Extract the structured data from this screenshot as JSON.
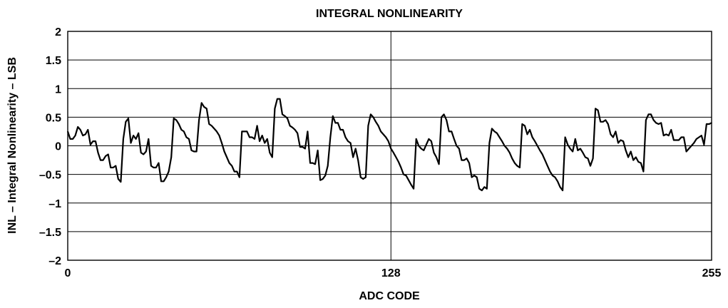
{
  "chart_data": {
    "type": "line",
    "title": "INTEGRAL NONLINEARITY",
    "xlabel": "ADC CODE",
    "ylabel": "INL – Integral Nonlinearity – LSB",
    "xlim": [
      0,
      255
    ],
    "ylim": [
      -2,
      2
    ],
    "x_ticks": [
      0,
      128,
      255
    ],
    "x_tick_labels": [
      "0",
      "128",
      "255"
    ],
    "y_ticks": [
      2,
      1.5,
      1,
      0.5,
      0,
      -0.5,
      -1,
      -1.5,
      -2
    ],
    "y_tick_labels": [
      "2",
      "1.5",
      "1",
      "0.5",
      "0",
      "–0.5",
      "–1",
      "–1.5",
      "–2"
    ],
    "grid": {
      "horizontal": true,
      "vertical": "x=128 only"
    },
    "line_color": "#000000",
    "series": [
      {
        "points": [
          [
            0,
            0.25
          ],
          [
            1,
            0.12
          ],
          [
            2,
            0.12
          ],
          [
            3,
            0.18
          ],
          [
            4,
            0.33
          ],
          [
            5,
            0.28
          ],
          [
            6,
            0.18
          ],
          [
            7,
            0.2
          ],
          [
            8,
            0.28
          ],
          [
            9,
            0.02
          ],
          [
            10,
            0.08
          ],
          [
            11,
            0.08
          ],
          [
            12,
            -0.12
          ],
          [
            13,
            -0.25
          ],
          [
            14,
            -0.25
          ],
          [
            15,
            -0.18
          ],
          [
            16,
            -0.15
          ],
          [
            17,
            -0.38
          ],
          [
            18,
            -0.38
          ],
          [
            19,
            -0.35
          ],
          [
            20,
            -0.58
          ],
          [
            21,
            -0.63
          ],
          [
            22,
            0.12
          ],
          [
            23,
            0.42
          ],
          [
            24,
            0.48
          ],
          [
            25,
            0.05
          ],
          [
            26,
            0.18
          ],
          [
            27,
            0.12
          ],
          [
            28,
            0.22
          ],
          [
            29,
            -0.12
          ],
          [
            30,
            -0.15
          ],
          [
            31,
            -0.1
          ],
          [
            32,
            0.12
          ],
          [
            33,
            -0.35
          ],
          [
            34,
            -0.38
          ],
          [
            35,
            -0.38
          ],
          [
            36,
            -0.3
          ],
          [
            37,
            -0.62
          ],
          [
            38,
            -0.62
          ],
          [
            39,
            -0.55
          ],
          [
            40,
            -0.45
          ],
          [
            41,
            -0.2
          ],
          [
            42,
            0.48
          ],
          [
            43,
            0.45
          ],
          [
            44,
            0.38
          ],
          [
            45,
            0.28
          ],
          [
            46,
            0.25
          ],
          [
            47,
            0.15
          ],
          [
            48,
            0.12
          ],
          [
            49,
            -0.08
          ],
          [
            50,
            -0.1
          ],
          [
            51,
            -0.1
          ],
          [
            52,
            0.45
          ],
          [
            53,
            0.75
          ],
          [
            54,
            0.68
          ],
          [
            55,
            0.65
          ],
          [
            56,
            0.38
          ],
          [
            57,
            0.35
          ],
          [
            58,
            0.3
          ],
          [
            59,
            0.25
          ],
          [
            60,
            0.18
          ],
          [
            61,
            0.05
          ],
          [
            62,
            -0.1
          ],
          [
            63,
            -0.2
          ],
          [
            64,
            -0.3
          ],
          [
            65,
            -0.35
          ],
          [
            66,
            -0.45
          ],
          [
            67,
            -0.45
          ],
          [
            68,
            -0.55
          ],
          [
            69,
            0.25
          ],
          [
            70,
            0.25
          ],
          [
            71,
            0.25
          ],
          [
            72,
            0.15
          ],
          [
            73,
            0.15
          ],
          [
            74,
            0.12
          ],
          [
            75,
            0.35
          ],
          [
            76,
            0.08
          ],
          [
            77,
            0.18
          ],
          [
            78,
            0.05
          ],
          [
            79,
            0.12
          ],
          [
            80,
            -0.12
          ],
          [
            81,
            -0.2
          ],
          [
            82,
            0.65
          ],
          [
            83,
            0.82
          ],
          [
            84,
            0.82
          ],
          [
            85,
            0.55
          ],
          [
            86,
            0.52
          ],
          [
            87,
            0.48
          ],
          [
            88,
            0.35
          ],
          [
            89,
            0.32
          ],
          [
            90,
            0.28
          ],
          [
            91,
            0.22
          ],
          [
            92,
            -0.02
          ],
          [
            93,
            -0.02
          ],
          [
            94,
            -0.05
          ],
          [
            95,
            0.25
          ],
          [
            96,
            -0.3
          ],
          [
            97,
            -0.3
          ],
          [
            98,
            -0.32
          ],
          [
            99,
            -0.08
          ],
          [
            100,
            -0.6
          ],
          [
            101,
            -0.58
          ],
          [
            102,
            -0.52
          ],
          [
            103,
            -0.35
          ],
          [
            104,
            0.15
          ],
          [
            105,
            0.52
          ],
          [
            106,
            0.4
          ],
          [
            107,
            0.4
          ],
          [
            108,
            0.28
          ],
          [
            109,
            0.28
          ],
          [
            110,
            0.15
          ],
          [
            111,
            0.08
          ],
          [
            112,
            0.05
          ],
          [
            113,
            -0.2
          ],
          [
            114,
            -0.05
          ],
          [
            115,
            -0.25
          ],
          [
            116,
            -0.55
          ],
          [
            117,
            -0.58
          ],
          [
            118,
            -0.55
          ],
          [
            119,
            0.35
          ],
          [
            120,
            0.55
          ],
          [
            121,
            0.5
          ],
          [
            122,
            0.42
          ],
          [
            123,
            0.35
          ],
          [
            124,
            0.25
          ],
          [
            125,
            0.2
          ],
          [
            126,
            0.15
          ],
          [
            127,
            0.08
          ],
          [
            128,
            -0.05
          ],
          [
            129,
            -0.12
          ],
          [
            130,
            -0.2
          ],
          [
            131,
            -0.28
          ],
          [
            132,
            -0.38
          ],
          [
            133,
            -0.5
          ],
          [
            134,
            -0.52
          ],
          [
            135,
            -0.6
          ],
          [
            136,
            -0.68
          ],
          [
            137,
            -0.75
          ],
          [
            138,
            0.12
          ],
          [
            139,
            0.0
          ],
          [
            140,
            -0.05
          ],
          [
            141,
            -0.08
          ],
          [
            142,
            0.02
          ],
          [
            143,
            0.12
          ],
          [
            144,
            0.08
          ],
          [
            145,
            -0.12
          ],
          [
            146,
            -0.2
          ],
          [
            147,
            -0.32
          ],
          [
            148,
            0.5
          ],
          [
            149,
            0.55
          ],
          [
            150,
            0.45
          ],
          [
            151,
            0.25
          ],
          [
            152,
            0.25
          ],
          [
            153,
            0.12
          ],
          [
            154,
            0.0
          ],
          [
            155,
            -0.05
          ],
          [
            156,
            -0.25
          ],
          [
            157,
            -0.25
          ],
          [
            158,
            -0.22
          ],
          [
            159,
            -0.3
          ],
          [
            160,
            -0.55
          ],
          [
            161,
            -0.52
          ],
          [
            162,
            -0.55
          ],
          [
            163,
            -0.75
          ],
          [
            164,
            -0.78
          ],
          [
            165,
            -0.72
          ],
          [
            166,
            -0.75
          ],
          [
            167,
            0.05
          ],
          [
            168,
            0.3
          ],
          [
            169,
            0.25
          ],
          [
            170,
            0.22
          ],
          [
            171,
            0.15
          ],
          [
            172,
            0.08
          ],
          [
            173,
            0.0
          ],
          [
            174,
            -0.05
          ],
          [
            175,
            -0.12
          ],
          [
            176,
            -0.22
          ],
          [
            177,
            -0.3
          ],
          [
            178,
            -0.35
          ],
          [
            179,
            -0.38
          ],
          [
            180,
            0.38
          ],
          [
            181,
            0.35
          ],
          [
            182,
            0.2
          ],
          [
            183,
            0.28
          ],
          [
            184,
            0.15
          ],
          [
            185,
            0.08
          ],
          [
            186,
            0.0
          ],
          [
            187,
            -0.08
          ],
          [
            188,
            -0.15
          ],
          [
            189,
            -0.25
          ],
          [
            190,
            -0.35
          ],
          [
            191,
            -0.45
          ],
          [
            192,
            -0.52
          ],
          [
            193,
            -0.55
          ],
          [
            194,
            -0.62
          ],
          [
            195,
            -0.72
          ],
          [
            196,
            -0.78
          ],
          [
            197,
            0.15
          ],
          [
            198,
            0.02
          ],
          [
            199,
            -0.05
          ],
          [
            200,
            -0.1
          ],
          [
            201,
            0.12
          ],
          [
            202,
            -0.08
          ],
          [
            203,
            -0.05
          ],
          [
            204,
            -0.12
          ],
          [
            205,
            -0.2
          ],
          [
            206,
            -0.22
          ],
          [
            207,
            -0.35
          ],
          [
            208,
            -0.22
          ],
          [
            209,
            0.65
          ],
          [
            210,
            0.62
          ],
          [
            211,
            0.42
          ],
          [
            212,
            0.42
          ],
          [
            213,
            0.45
          ],
          [
            214,
            0.38
          ],
          [
            215,
            0.2
          ],
          [
            216,
            0.15
          ],
          [
            217,
            0.25
          ],
          [
            218,
            0.05
          ],
          [
            219,
            0.1
          ],
          [
            220,
            0.08
          ],
          [
            221,
            -0.08
          ],
          [
            222,
            -0.2
          ],
          [
            223,
            -0.1
          ],
          [
            224,
            -0.25
          ],
          [
            225,
            -0.2
          ],
          [
            226,
            -0.28
          ],
          [
            227,
            -0.3
          ],
          [
            228,
            -0.45
          ],
          [
            229,
            0.45
          ],
          [
            230,
            0.55
          ],
          [
            231,
            0.55
          ],
          [
            232,
            0.45
          ],
          [
            233,
            0.4
          ],
          [
            234,
            0.38
          ],
          [
            235,
            0.4
          ],
          [
            236,
            0.18
          ],
          [
            237,
            0.2
          ],
          [
            238,
            0.18
          ],
          [
            239,
            0.28
          ],
          [
            240,
            0.1
          ],
          [
            241,
            0.1
          ],
          [
            242,
            0.1
          ],
          [
            243,
            0.15
          ],
          [
            244,
            0.15
          ],
          [
            245,
            -0.1
          ],
          [
            246,
            -0.05
          ],
          [
            247,
            0.0
          ],
          [
            248,
            0.05
          ],
          [
            249,
            0.12
          ],
          [
            250,
            0.15
          ],
          [
            251,
            0.18
          ],
          [
            252,
            0.02
          ],
          [
            253,
            0.38
          ],
          [
            254,
            0.38
          ],
          [
            255,
            0.4
          ]
        ]
      }
    ]
  }
}
